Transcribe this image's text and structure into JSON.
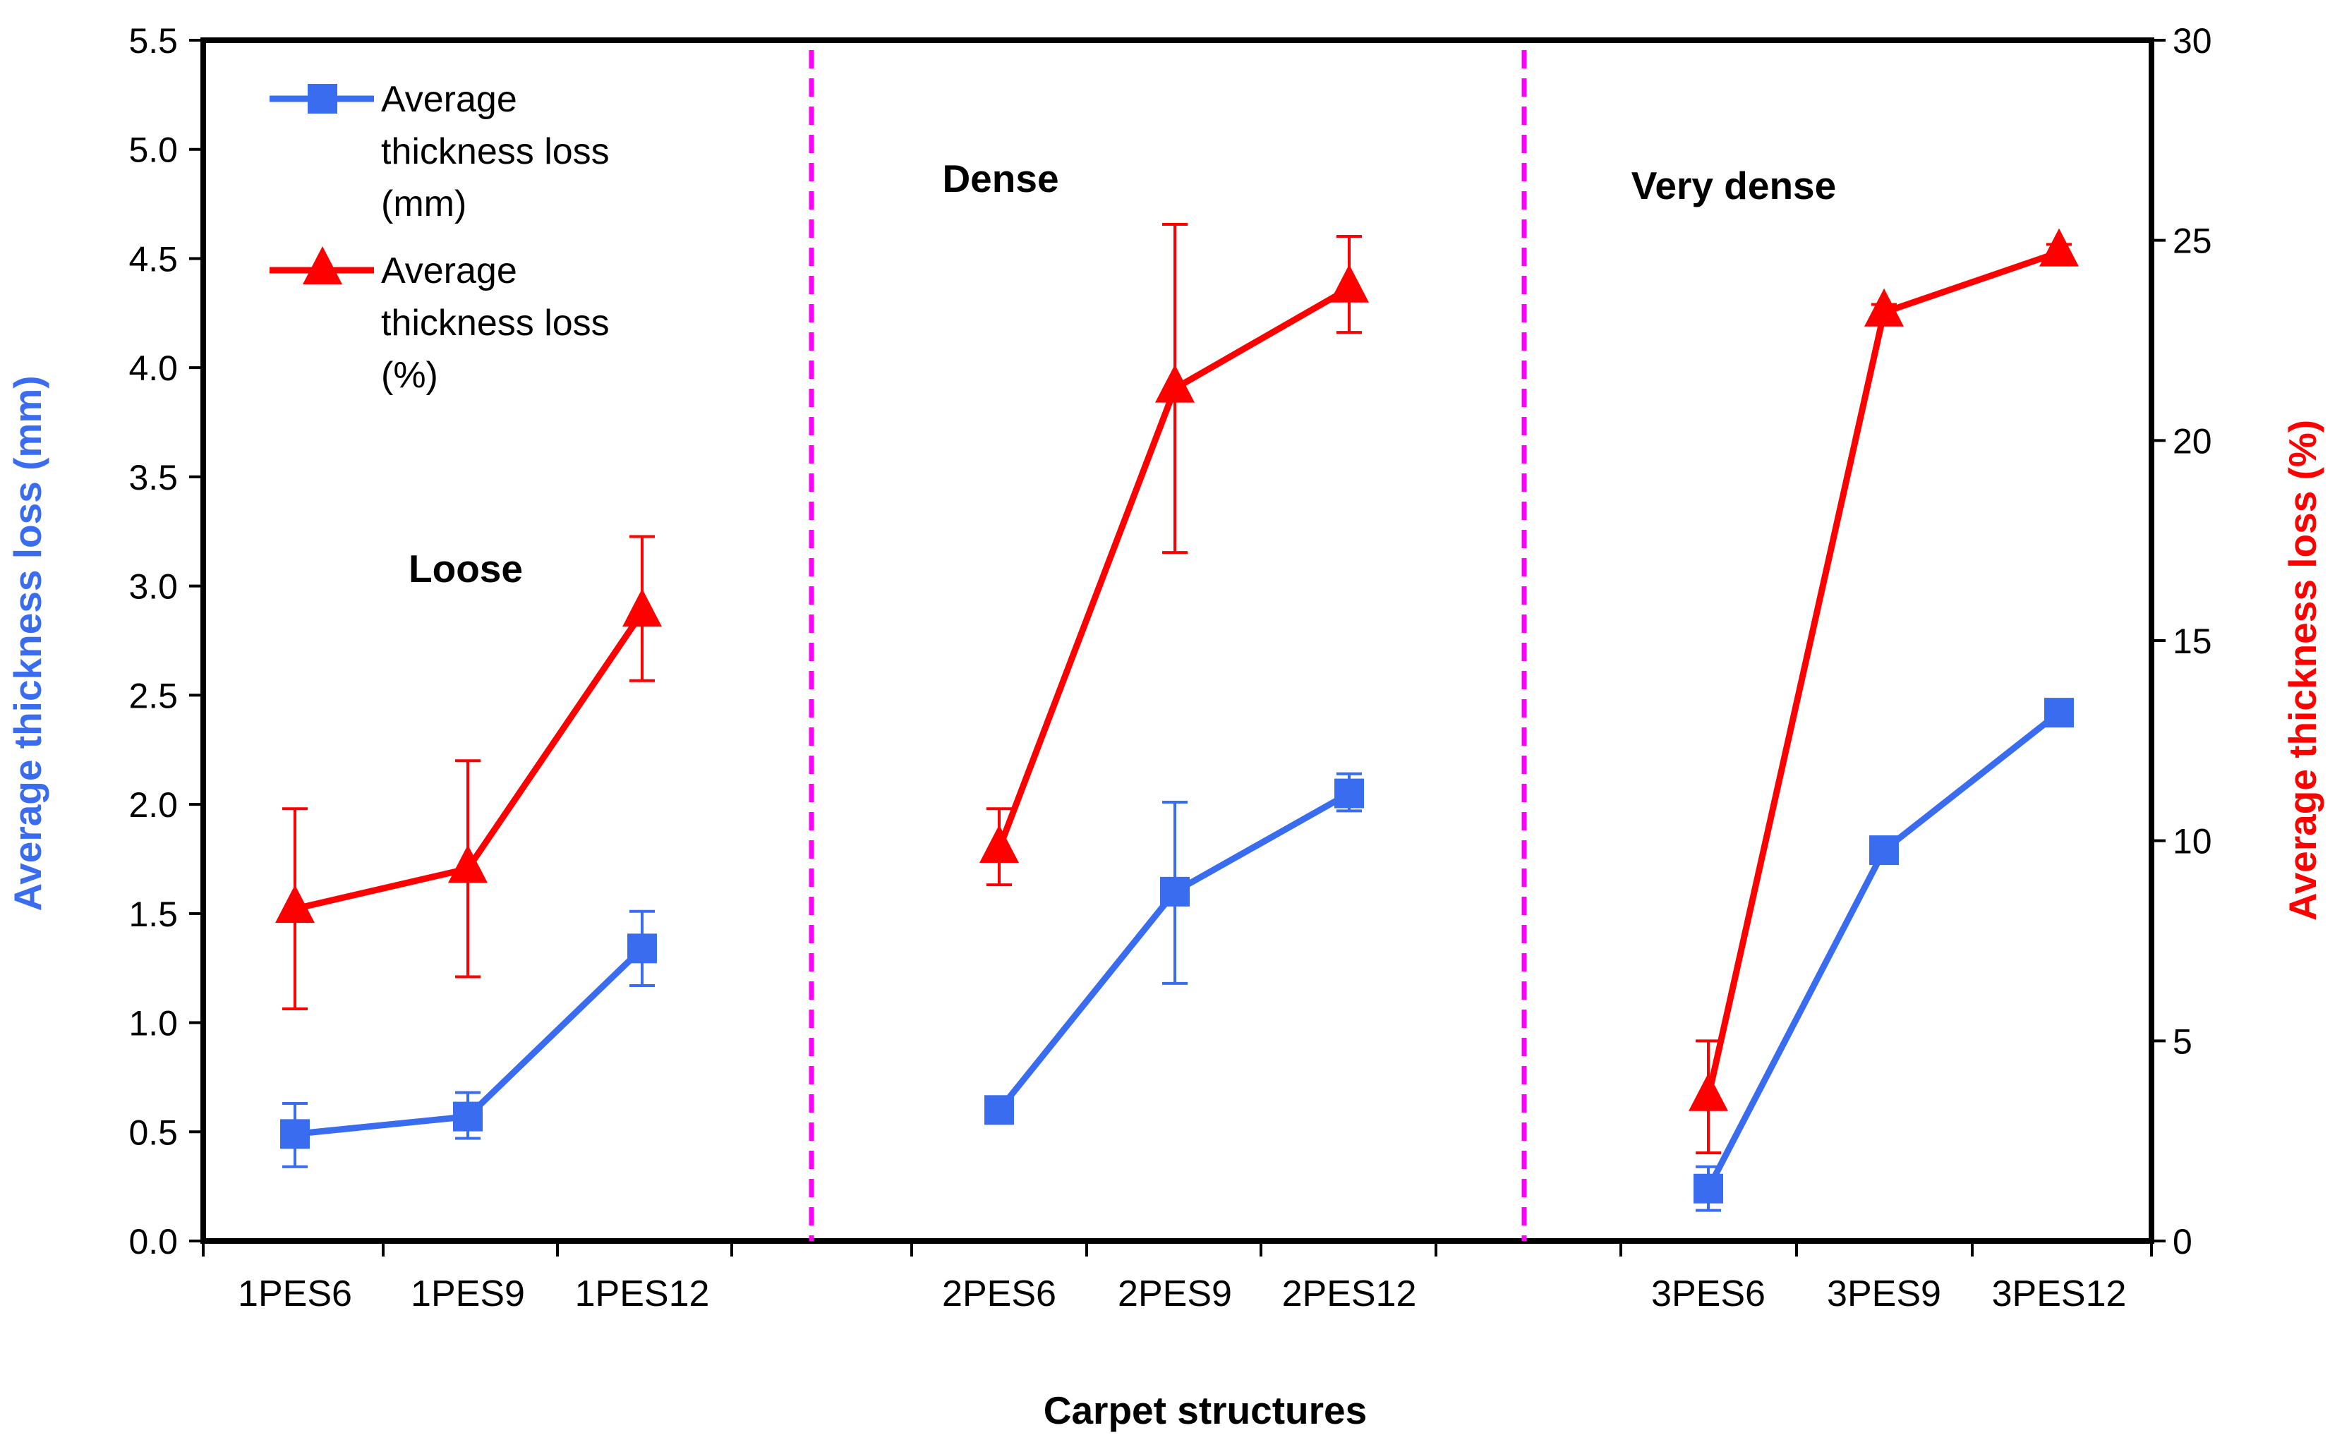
{
  "chart_data": {
    "type": "line",
    "title": "",
    "xlabel": "Carpet structures",
    "ylabel": "Average thickness loss (mm)",
    "y2label": "Average thickness loss (%)",
    "ylim": [
      0,
      5.5
    ],
    "y2lim": [
      0,
      30
    ],
    "yticks": [
      "0.0",
      "0.5",
      "1.0",
      "1.5",
      "2.0",
      "2.5",
      "3.0",
      "3.5",
      "4.0",
      "4.5",
      "5.0",
      "5.5"
    ],
    "y2ticks": [
      "0",
      "5",
      "10",
      "15",
      "20",
      "25",
      "30"
    ],
    "categories": [
      "1PES6",
      "1PES9",
      "1PES12",
      "2PES6",
      "2PES9",
      "2PES12",
      "3PES6",
      "3PES9",
      "3PES12"
    ],
    "groups": [
      "Loose",
      "Dense",
      "Very dense"
    ],
    "legend_position": "top-left",
    "series": [
      {
        "name": "Average thickness loss (mm)",
        "legend_lines": [
          "Average",
          "thickness loss",
          "(mm)"
        ],
        "axis": "left",
        "color": "#3a6cf0",
        "marker": "square",
        "groups": [
          {
            "values": [
              0.49,
              0.57,
              1.34
            ],
            "err_low": [
              0.34,
              0.47,
              1.17
            ],
            "err_high": [
              0.63,
              0.68,
              1.51
            ]
          },
          {
            "values": [
              0.6,
              1.6,
              2.05
            ],
            "err_low": [
              0.56,
              1.18,
              1.97
            ],
            "err_high": [
              0.64,
              2.01,
              2.14
            ]
          },
          {
            "values": [
              0.24,
              1.79,
              2.42
            ],
            "err_low": [
              0.14,
              1.75,
              2.38
            ],
            "err_high": [
              0.34,
              1.83,
              2.46
            ]
          }
        ]
      },
      {
        "name": "Average thickness loss (%)",
        "legend_lines": [
          "Average",
          "thickness loss",
          "(%)"
        ],
        "axis": "right",
        "color": "#ff0000",
        "marker": "triangle",
        "groups": [
          {
            "values": [
              8.3,
              9.3,
              15.7
            ],
            "err_low": [
              5.8,
              6.6,
              14.0
            ],
            "err_high": [
              10.8,
              12.0,
              17.6
            ]
          },
          {
            "values": [
              9.8,
              21.3,
              23.8
            ],
            "err_low": [
              8.9,
              17.2,
              22.7
            ],
            "err_high": [
              10.8,
              25.4,
              25.1
            ]
          },
          {
            "values": [
              3.6,
              23.2,
              24.7
            ],
            "err_low": [
              2.2,
              23.0,
              24.5
            ],
            "err_high": [
              5.0,
              23.4,
              24.9
            ]
          }
        ]
      }
    ]
  }
}
